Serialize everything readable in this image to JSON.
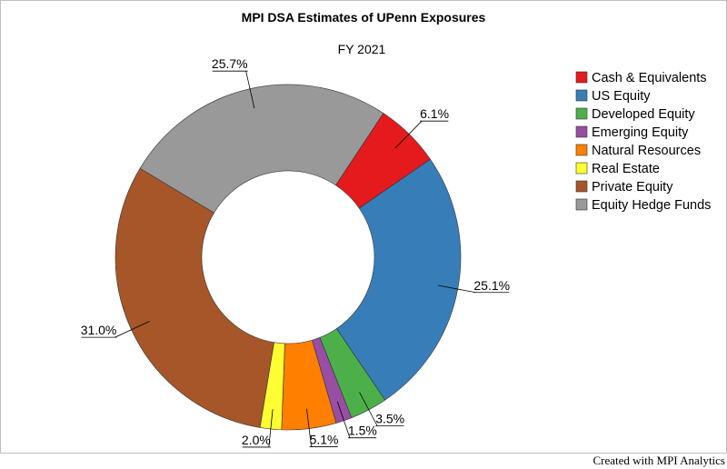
{
  "chart_data": {
    "type": "pie",
    "donut": true,
    "title": "MPI DSA Estimates of UPenn Exposures",
    "subtitle": "FY 2021",
    "legend_position": "right",
    "slices": [
      {
        "label": "Cash & Equivalents",
        "value": 6.1,
        "value_label": "6.1%",
        "color": "#e41a1c"
      },
      {
        "label": "US Equity",
        "value": 25.1,
        "value_label": "25.1%",
        "color": "#377eb8"
      },
      {
        "label": "Developed Equity",
        "value": 3.5,
        "value_label": "3.5%",
        "color": "#4daf4a"
      },
      {
        "label": "Emerging Equity",
        "value": 1.5,
        "value_label": "1.5%",
        "color": "#984ea3"
      },
      {
        "label": "Natural Resources",
        "value": 5.1,
        "value_label": "5.1%",
        "color": "#ff7f00"
      },
      {
        "label": "Real Estate",
        "value": 2.0,
        "value_label": "2.0%",
        "color": "#ffff33"
      },
      {
        "label": "Private Equity",
        "value": 31.0,
        "value_label": "31.0%",
        "color": "#a65628"
      },
      {
        "label": "Equity Hedge Funds",
        "value": 25.7,
        "value_label": "25.7%",
        "color": "#999999"
      }
    ]
  },
  "footer": {
    "credit": "Created with MPI Analytics"
  }
}
